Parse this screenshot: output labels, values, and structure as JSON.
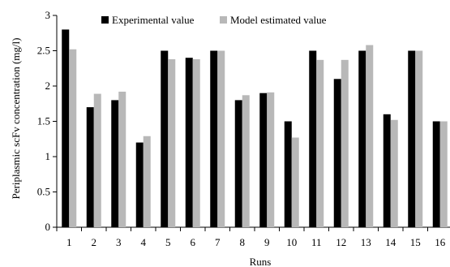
{
  "chart_data": {
    "type": "bar",
    "title": "",
    "xlabel": "Runs",
    "ylabel": "Periplasmic scFv concentration (mg/l)",
    "categories": [
      "1",
      "2",
      "3",
      "4",
      "5",
      "6",
      "7",
      "8",
      "9",
      "10",
      "11",
      "12",
      "13",
      "14",
      "15",
      "16"
    ],
    "series": [
      {
        "name": "Experimental value",
        "color": "#000000",
        "values": [
          2.8,
          1.7,
          1.8,
          1.2,
          2.5,
          2.4,
          2.5,
          1.8,
          1.9,
          1.5,
          2.5,
          2.1,
          2.5,
          1.6,
          2.5,
          1.5
        ]
      },
      {
        "name": "Model estimated value",
        "color": "#b8b8b8",
        "values": [
          2.52,
          1.89,
          1.92,
          1.29,
          2.38,
          2.38,
          2.5,
          1.87,
          1.91,
          1.27,
          2.37,
          2.37,
          2.58,
          1.52,
          2.5,
          1.5
        ]
      }
    ],
    "ylim": [
      0,
      3
    ],
    "yticks": [
      "0",
      "0.5",
      "1",
      "1.5",
      "2",
      "2.5",
      "3"
    ],
    "grid": false,
    "legend": "top"
  }
}
